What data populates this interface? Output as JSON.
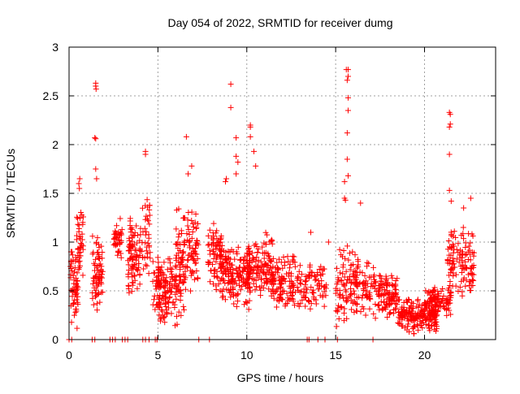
{
  "chart_data": {
    "type": "scatter",
    "title": "Day 054 of 2022, SRMTID for receiver dumg",
    "xlabel": "GPS time / hours",
    "ylabel": "SRMTID / TECUs",
    "xlim": [
      0,
      24
    ],
    "ylim": [
      0,
      3
    ],
    "xticks": [
      0,
      5,
      10,
      15,
      20
    ],
    "yticks": [
      0,
      0.5,
      1,
      1.5,
      2,
      2.5,
      3
    ],
    "xtick_labels": [
      "0",
      "5",
      "10",
      "15",
      "20"
    ],
    "ytick_labels": [
      "0",
      "0.5",
      "1",
      "1.5",
      "2",
      "2.5",
      "3"
    ],
    "grid": true,
    "marker": "+",
    "color": "#ff0000",
    "clusters": [
      {
        "x": [
          0.05,
          0.5
        ],
        "y": [
          0.1,
          1.0
        ],
        "n": 60
      },
      {
        "x": [
          0.4,
          0.8
        ],
        "y": [
          0.5,
          1.4
        ],
        "n": 40
      },
      {
        "x": [
          1.3,
          1.9
        ],
        "y": [
          0.2,
          1.1
        ],
        "n": 70
      },
      {
        "x": [
          2.5,
          3.0
        ],
        "y": [
          0.8,
          1.3
        ],
        "n": 40
      },
      {
        "x": [
          3.3,
          4.0
        ],
        "y": [
          0.4,
          1.3
        ],
        "n": 90
      },
      {
        "x": [
          4.0,
          4.6
        ],
        "y": [
          0.6,
          1.5
        ],
        "n": 40
      },
      {
        "x": [
          4.7,
          5.5
        ],
        "y": [
          0.2,
          0.9
        ],
        "n": 60
      },
      {
        "x": [
          5.0,
          6.5
        ],
        "y": [
          0.1,
          0.9
        ],
        "n": 120
      },
      {
        "x": [
          6.0,
          7.3
        ],
        "y": [
          0.4,
          1.4
        ],
        "n": 110
      },
      {
        "x": [
          7.8,
          8.6
        ],
        "y": [
          0.5,
          1.2
        ],
        "n": 70
      },
      {
        "x": [
          8.5,
          10.2
        ],
        "y": [
          0.3,
          1.0
        ],
        "n": 170
      },
      {
        "x": [
          10.0,
          11.5
        ],
        "y": [
          0.4,
          1.1
        ],
        "n": 130
      },
      {
        "x": [
          11.4,
          13.0
        ],
        "y": [
          0.3,
          0.9
        ],
        "n": 120
      },
      {
        "x": [
          13.0,
          14.5
        ],
        "y": [
          0.3,
          0.8
        ],
        "n": 80
      },
      {
        "x": [
          15.0,
          16.2
        ],
        "y": [
          0.1,
          1.0
        ],
        "n": 90
      },
      {
        "x": [
          16.0,
          17.2
        ],
        "y": [
          0.2,
          0.9
        ],
        "n": 70
      },
      {
        "x": [
          17.2,
          18.5
        ],
        "y": [
          0.2,
          0.7
        ],
        "n": 110
      },
      {
        "x": [
          18.5,
          20.8
        ],
        "y": [
          0.05,
          0.45
        ],
        "n": 200
      },
      {
        "x": [
          20.0,
          21.5
        ],
        "y": [
          0.2,
          0.6
        ],
        "n": 100
      },
      {
        "x": [
          21.3,
          22.8
        ],
        "y": [
          0.4,
          1.2
        ],
        "n": 120
      }
    ],
    "outliers": [
      {
        "x": 0.55,
        "y": 1.6
      },
      {
        "x": 0.6,
        "y": 1.65
      },
      {
        "x": 0.58,
        "y": 1.55
      },
      {
        "x": 1.5,
        "y": 2.6
      },
      {
        "x": 1.5,
        "y": 2.63
      },
      {
        "x": 1.52,
        "y": 2.57
      },
      {
        "x": 1.45,
        "y": 2.07
      },
      {
        "x": 1.5,
        "y": 2.06
      },
      {
        "x": 1.5,
        "y": 1.75
      },
      {
        "x": 1.55,
        "y": 1.65
      },
      {
        "x": 4.3,
        "y": 1.9
      },
      {
        "x": 4.3,
        "y": 1.93
      },
      {
        "x": 6.6,
        "y": 2.08
      },
      {
        "x": 6.9,
        "y": 1.78
      },
      {
        "x": 6.7,
        "y": 1.7
      },
      {
        "x": 9.1,
        "y": 2.62
      },
      {
        "x": 9.1,
        "y": 2.38
      },
      {
        "x": 9.4,
        "y": 2.07
      },
      {
        "x": 9.4,
        "y": 1.88
      },
      {
        "x": 9.5,
        "y": 1.82
      },
      {
        "x": 9.4,
        "y": 1.7
      },
      {
        "x": 10.2,
        "y": 2.2
      },
      {
        "x": 10.2,
        "y": 2.18
      },
      {
        "x": 10.2,
        "y": 2.08
      },
      {
        "x": 10.4,
        "y": 1.93
      },
      {
        "x": 10.5,
        "y": 1.78
      },
      {
        "x": 8.8,
        "y": 1.62
      },
      {
        "x": 8.85,
        "y": 1.65
      },
      {
        "x": 15.6,
        "y": 2.77
      },
      {
        "x": 15.7,
        "y": 2.77
      },
      {
        "x": 15.7,
        "y": 2.7
      },
      {
        "x": 15.65,
        "y": 2.66
      },
      {
        "x": 15.7,
        "y": 2.48
      },
      {
        "x": 15.7,
        "y": 2.35
      },
      {
        "x": 15.65,
        "y": 2.12
      },
      {
        "x": 15.65,
        "y": 1.85
      },
      {
        "x": 15.7,
        "y": 1.68
      },
      {
        "x": 15.5,
        "y": 1.62
      },
      {
        "x": 15.5,
        "y": 1.45
      },
      {
        "x": 15.55,
        "y": 1.43
      },
      {
        "x": 21.4,
        "y": 2.33
      },
      {
        "x": 21.45,
        "y": 2.31
      },
      {
        "x": 21.45,
        "y": 2.21
      },
      {
        "x": 21.4,
        "y": 2.18
      },
      {
        "x": 21.4,
        "y": 1.9
      },
      {
        "x": 21.4,
        "y": 1.53
      },
      {
        "x": 21.5,
        "y": 1.42
      },
      {
        "x": 16.4,
        "y": 1.4
      },
      {
        "x": 22.6,
        "y": 1.45
      },
      {
        "x": 22.2,
        "y": 1.35
      },
      {
        "x": 13.6,
        "y": 1.1
      },
      {
        "x": 14.6,
        "y": 1.0
      }
    ],
    "baseline_points": {
      "y": 0,
      "x": [
        0.0,
        0.15,
        1.3,
        1.45,
        2.3,
        2.45,
        2.6,
        3.0,
        3.15,
        3.3,
        4.15,
        4.3,
        4.5,
        4.85,
        4.95,
        7.3,
        7.9,
        13.4,
        13.5,
        14.0,
        14.4,
        15.1,
        17.1
      ]
    }
  }
}
